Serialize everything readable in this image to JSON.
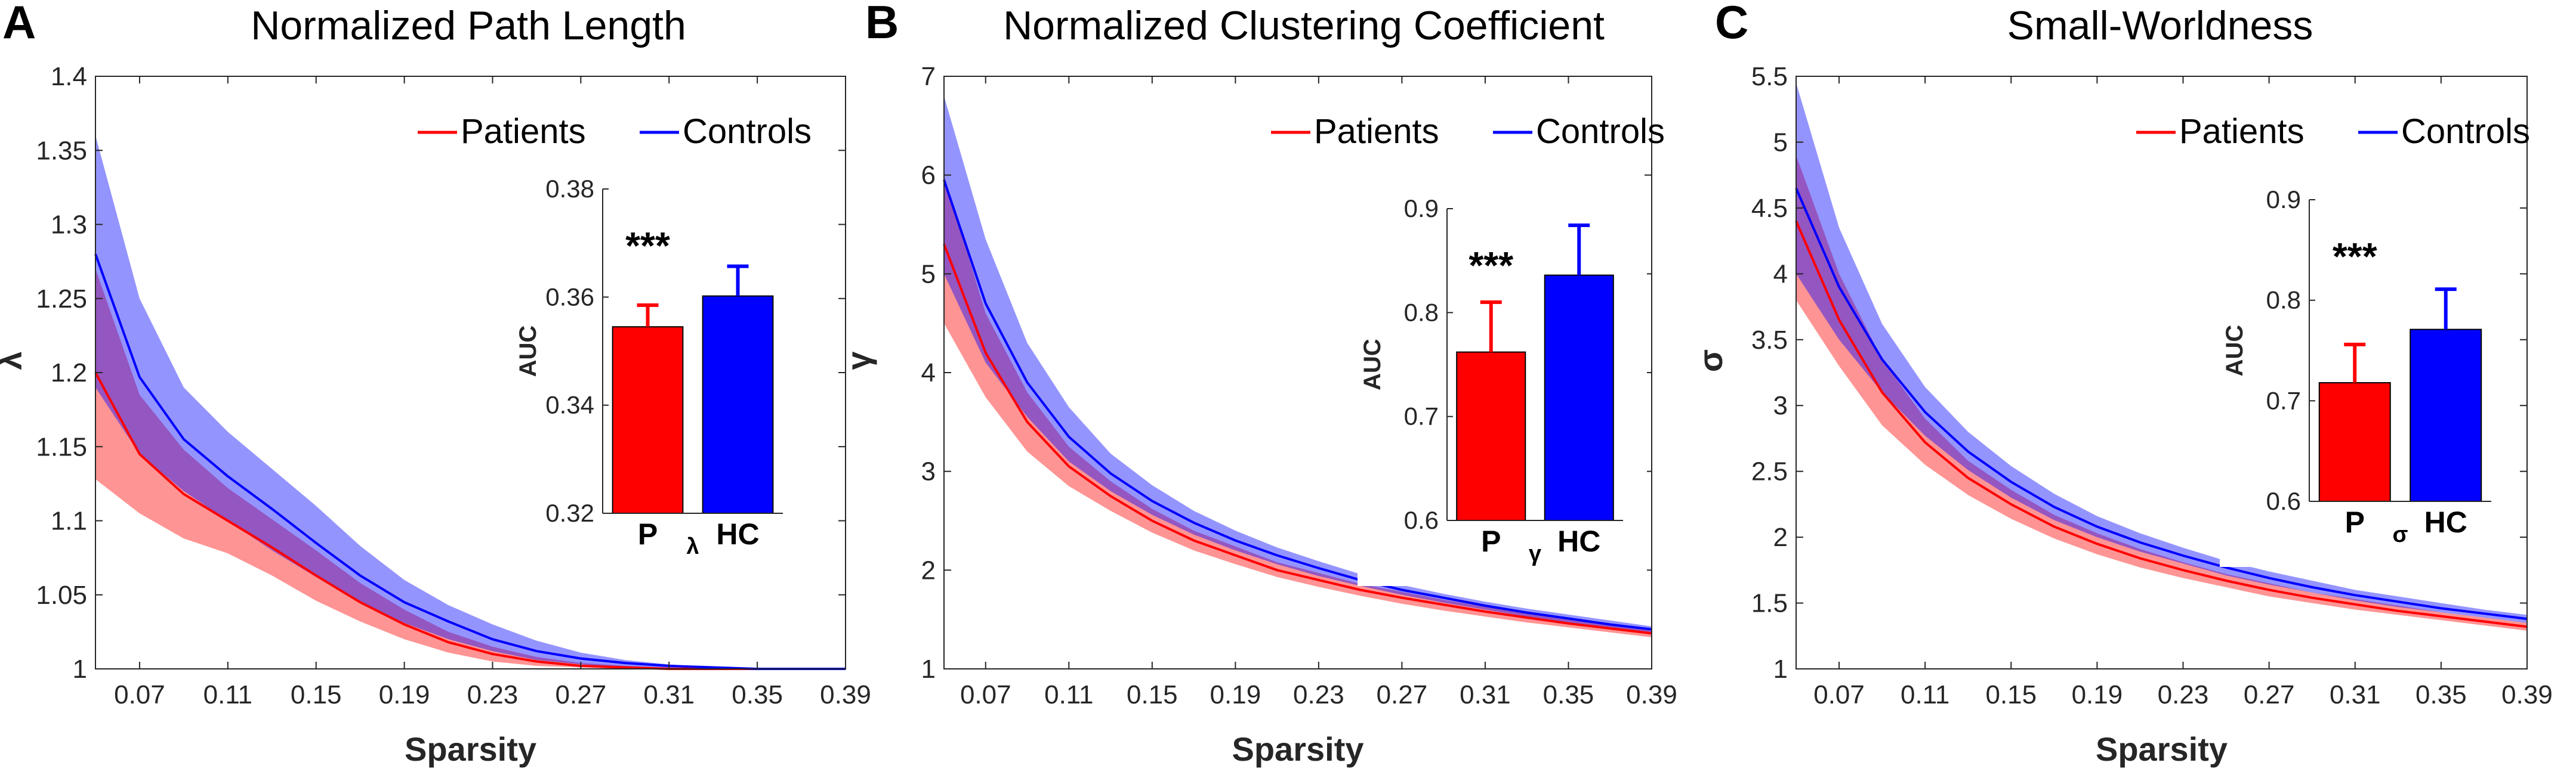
{
  "chart_data": [
    {
      "type": "line",
      "letter": "A",
      "title": "Normalized Path Length",
      "xlabel": "Sparsity",
      "ylabel": "λ",
      "xlim": [
        0.05,
        0.39
      ],
      "ylim": [
        1,
        1.4
      ],
      "xticks": [
        "0.07",
        "0.11",
        "0.15",
        "0.19",
        "0.23",
        "0.27",
        "0.31",
        "0.35",
        "0.39"
      ],
      "yticks": [
        "1",
        "1.05",
        "1.1",
        "1.15",
        "1.2",
        "1.25",
        "1.3",
        "1.35",
        "1.4"
      ],
      "x": [
        0.05,
        0.07,
        0.09,
        0.11,
        0.13,
        0.15,
        0.17,
        0.19,
        0.21,
        0.23,
        0.25,
        0.27,
        0.29,
        0.31,
        0.33,
        0.35,
        0.37,
        0.39
      ],
      "series": [
        {
          "name": "Patients",
          "color": "#ff0000",
          "values": [
            1.2,
            1.145,
            1.118,
            1.1,
            1.082,
            1.063,
            1.045,
            1.03,
            1.018,
            1.01,
            1.005,
            1.002,
            1.001,
            1.0,
            1.0,
            1.0,
            1.0,
            1.0
          ],
          "lower": [
            1.128,
            1.105,
            1.088,
            1.078,
            1.063,
            1.046,
            1.032,
            1.02,
            1.011,
            1.005,
            1.002,
            1.001,
            1.0,
            1.0,
            1.0,
            1.0,
            1.0,
            1.0
          ],
          "upper": [
            1.27,
            1.185,
            1.148,
            1.122,
            1.101,
            1.08,
            1.058,
            1.04,
            1.025,
            1.015,
            1.008,
            1.004,
            1.002,
            1.001,
            1.0,
            1.0,
            1.0,
            1.0
          ]
        },
        {
          "name": "Controls",
          "color": "#0000ff",
          "values": [
            1.28,
            1.197,
            1.155,
            1.13,
            1.108,
            1.085,
            1.063,
            1.045,
            1.032,
            1.02,
            1.012,
            1.007,
            1.004,
            1.002,
            1.001,
            1.0,
            1.0,
            1.0
          ],
          "lower": [
            1.19,
            1.145,
            1.12,
            1.1,
            1.08,
            1.062,
            1.045,
            1.031,
            1.02,
            1.012,
            1.006,
            1.003,
            1.001,
            1.0,
            1.0,
            1.0,
            1.0,
            1.0
          ],
          "upper": [
            1.36,
            1.25,
            1.19,
            1.16,
            1.135,
            1.11,
            1.083,
            1.06,
            1.043,
            1.03,
            1.019,
            1.011,
            1.006,
            1.003,
            1.001,
            1.0,
            1.0,
            1.0
          ]
        }
      ],
      "legend": [
        "Patients",
        "Controls"
      ],
      "inset": {
        "type": "bar",
        "ylabel": "AUC",
        "xlabel": "λ",
        "categories": [
          "P",
          "HC"
        ],
        "values": [
          0.3545,
          0.3602
        ],
        "errors": [
          0.004,
          0.0055
        ],
        "colors": [
          "#ff0000",
          "#0000ff"
        ],
        "ylim": [
          0.32,
          0.38
        ],
        "yticks": [
          "0.32",
          "0.34",
          "0.36",
          "0.38"
        ],
        "significance": "***"
      }
    },
    {
      "type": "line",
      "letter": "B",
      "title": "Normalized Clustering Coefficient",
      "xlabel": "Sparsity",
      "ylabel": "γ",
      "xlim": [
        0.05,
        0.39
      ],
      "ylim": [
        1,
        7
      ],
      "xticks": [
        "0.07",
        "0.11",
        "0.15",
        "0.19",
        "0.23",
        "0.27",
        "0.31",
        "0.35",
        "0.39"
      ],
      "yticks": [
        "1",
        "2",
        "3",
        "4",
        "5",
        "6",
        "7"
      ],
      "x": [
        0.05,
        0.07,
        0.09,
        0.11,
        0.13,
        0.15,
        0.17,
        0.19,
        0.21,
        0.23,
        0.25,
        0.27,
        0.29,
        0.31,
        0.33,
        0.35,
        0.37,
        0.39
      ],
      "series": [
        {
          "name": "Patients",
          "color": "#ff0000",
          "values": [
            5.3,
            4.2,
            3.5,
            3.05,
            2.75,
            2.5,
            2.3,
            2.15,
            2.0,
            1.9,
            1.8,
            1.72,
            1.65,
            1.58,
            1.52,
            1.46,
            1.41,
            1.36
          ],
          "lower": [
            4.5,
            3.75,
            3.2,
            2.85,
            2.6,
            2.38,
            2.2,
            2.06,
            1.93,
            1.83,
            1.74,
            1.66,
            1.59,
            1.53,
            1.47,
            1.42,
            1.37,
            1.32
          ],
          "upper": [
            6.0,
            4.6,
            3.8,
            3.25,
            2.9,
            2.62,
            2.4,
            2.24,
            2.08,
            1.97,
            1.86,
            1.78,
            1.7,
            1.63,
            1.56,
            1.5,
            1.45,
            1.4
          ]
        },
        {
          "name": "Controls",
          "color": "#0000ff",
          "values": [
            5.95,
            4.7,
            3.9,
            3.35,
            2.98,
            2.7,
            2.48,
            2.3,
            2.15,
            2.02,
            1.9,
            1.8,
            1.72,
            1.64,
            1.57,
            1.51,
            1.45,
            1.4
          ],
          "lower": [
            5.0,
            4.1,
            3.55,
            3.1,
            2.8,
            2.56,
            2.36,
            2.2,
            2.06,
            1.94,
            1.84,
            1.75,
            1.67,
            1.6,
            1.53,
            1.47,
            1.42,
            1.37
          ],
          "upper": [
            6.8,
            5.35,
            4.3,
            3.65,
            3.18,
            2.86,
            2.6,
            2.4,
            2.23,
            2.09,
            1.96,
            1.85,
            1.76,
            1.68,
            1.61,
            1.55,
            1.49,
            1.43
          ]
        }
      ],
      "legend": [
        "Patients",
        "Controls"
      ],
      "inset": {
        "type": "bar",
        "ylabel": "AUC",
        "xlabel": "γ",
        "categories": [
          "P",
          "HC"
        ],
        "values": [
          0.762,
          0.836
        ],
        "errors": [
          0.048,
          0.048
        ],
        "colors": [
          "#ff0000",
          "#0000ff"
        ],
        "ylim": [
          0.6,
          0.9
        ],
        "yticks": [
          "0.6",
          "0.7",
          "0.8",
          "0.9"
        ],
        "significance": "***"
      }
    },
    {
      "type": "line",
      "letter": "C",
      "title": "Small-Worldness",
      "xlabel": "Sparsity",
      "ylabel": "σ",
      "xlim": [
        0.05,
        0.39
      ],
      "ylim": [
        1,
        5.5
      ],
      "xticks": [
        "0.07",
        "0.11",
        "0.15",
        "0.19",
        "0.23",
        "0.27",
        "0.31",
        "0.35",
        "0.39"
      ],
      "yticks": [
        "1",
        "1.5",
        "2",
        "2.5",
        "3",
        "3.5",
        "4",
        "4.5",
        "5",
        "5.5"
      ],
      "x": [
        0.05,
        0.07,
        0.09,
        0.11,
        0.13,
        0.15,
        0.17,
        0.19,
        0.21,
        0.23,
        0.25,
        0.27,
        0.29,
        0.31,
        0.33,
        0.35,
        0.37,
        0.39
      ],
      "series": [
        {
          "name": "Patients",
          "color": "#ff0000",
          "values": [
            4.4,
            3.65,
            3.1,
            2.72,
            2.45,
            2.25,
            2.08,
            1.95,
            1.84,
            1.75,
            1.67,
            1.6,
            1.54,
            1.49,
            1.44,
            1.4,
            1.36,
            1.32
          ],
          "lower": [
            3.8,
            3.3,
            2.85,
            2.55,
            2.32,
            2.14,
            1.99,
            1.87,
            1.77,
            1.69,
            1.62,
            1.55,
            1.5,
            1.45,
            1.41,
            1.37,
            1.33,
            1.29
          ],
          "upper": [
            4.9,
            4.0,
            3.35,
            2.9,
            2.58,
            2.36,
            2.17,
            2.03,
            1.91,
            1.81,
            1.72,
            1.65,
            1.58,
            1.53,
            1.48,
            1.43,
            1.39,
            1.35
          ]
        },
        {
          "name": "Controls",
          "color": "#0000ff",
          "values": [
            4.65,
            3.9,
            3.35,
            2.95,
            2.65,
            2.42,
            2.23,
            2.08,
            1.96,
            1.86,
            1.77,
            1.69,
            1.62,
            1.56,
            1.51,
            1.46,
            1.42,
            1.38
          ],
          "lower": [
            4.0,
            3.5,
            3.1,
            2.77,
            2.51,
            2.3,
            2.13,
            2.0,
            1.89,
            1.8,
            1.71,
            1.64,
            1.58,
            1.52,
            1.47,
            1.43,
            1.39,
            1.35
          ],
          "upper": [
            5.45,
            4.35,
            3.62,
            3.14,
            2.8,
            2.54,
            2.33,
            2.16,
            2.03,
            1.92,
            1.82,
            1.74,
            1.67,
            1.6,
            1.55,
            1.5,
            1.45,
            1.41
          ]
        }
      ],
      "legend": [
        "Patients",
        "Controls"
      ],
      "inset": {
        "type": "bar",
        "ylabel": "AUC",
        "xlabel": "σ",
        "categories": [
          "P",
          "HC"
        ],
        "values": [
          0.718,
          0.771
        ],
        "errors": [
          0.038,
          0.04
        ],
        "colors": [
          "#ff0000",
          "#0000ff"
        ],
        "ylim": [
          0.6,
          0.9
        ],
        "yticks": [
          "0.6",
          "0.7",
          "0.8",
          "0.9"
        ],
        "significance": "***"
      }
    }
  ]
}
